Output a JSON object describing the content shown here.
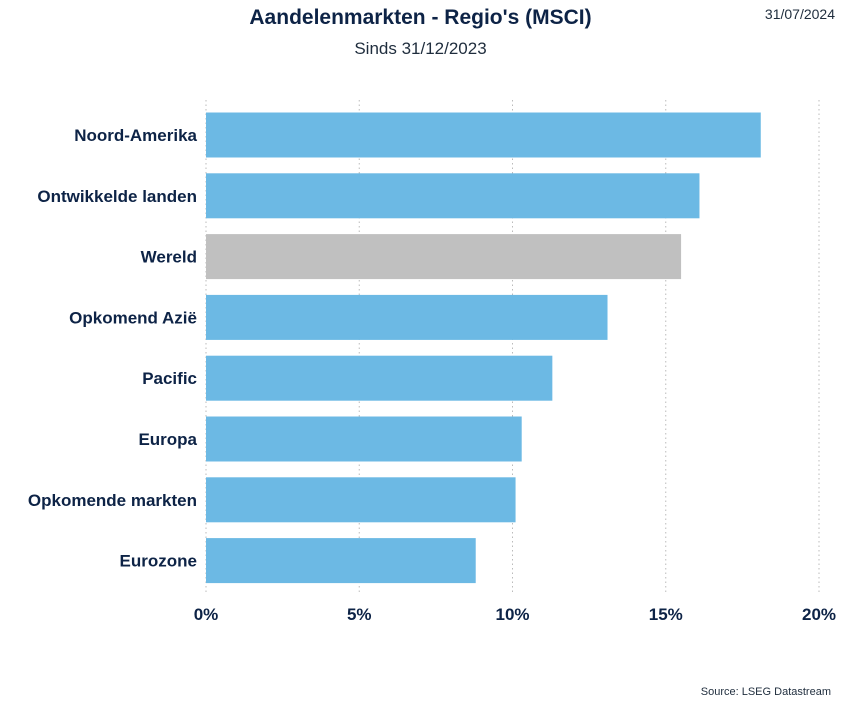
{
  "header": {
    "title": "Aandelenmarkten - Regio's (MSCI)",
    "subtitle": "Sinds 31/12/2023",
    "date": "31/07/2024"
  },
  "footer": {
    "source": "Source: LSEG Datastream"
  },
  "colors": {
    "bar": "#6cb9e4",
    "highlight": "#c0c0c0",
    "text": "#0d2346",
    "grid": "#bbbbbb"
  },
  "chart_data": {
    "type": "bar",
    "orientation": "horizontal",
    "title": "Aandelenmarkten - Regio's (MSCI)",
    "subtitle": "Sinds 31/12/2023",
    "categories": [
      "Noord-Amerika",
      "Ontwikkelde landen",
      "Wereld",
      "Opkomend Azië",
      "Pacific",
      "Europa",
      "Opkomende markten",
      "Eurozone"
    ],
    "values": [
      18.1,
      16.1,
      15.5,
      13.1,
      11.3,
      10.3,
      10.1,
      8.8
    ],
    "highlight": [
      "Wereld"
    ],
    "xlim": [
      0,
      20
    ],
    "xticks": [
      0,
      5,
      10,
      15,
      20
    ],
    "xtick_labels": [
      "0%",
      "5%",
      "10%",
      "15%",
      "20%"
    ],
    "grid": "vertical dotted",
    "xlabel": "",
    "ylabel": ""
  }
}
